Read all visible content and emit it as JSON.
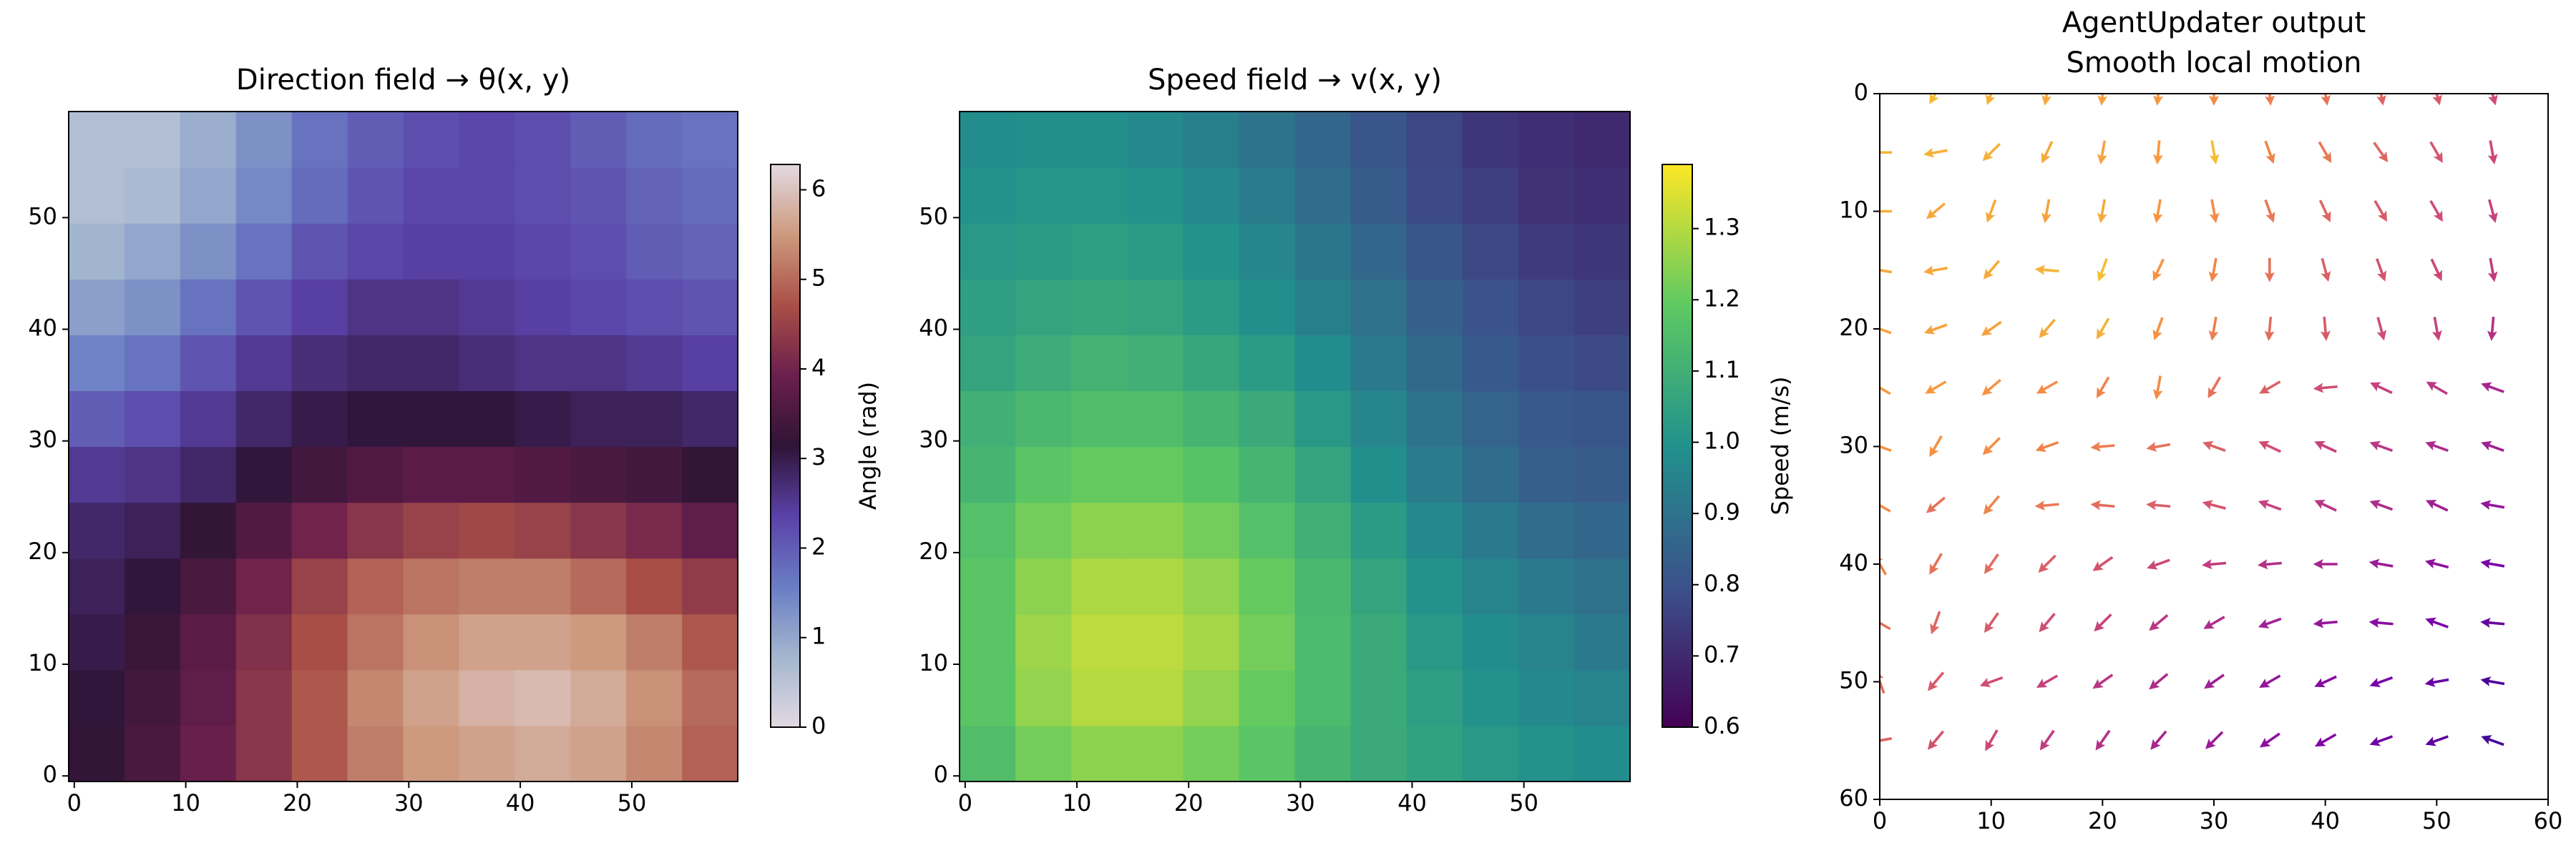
{
  "chart_data": [
    {
      "type": "heatmap",
      "title": "Direction field → θ(x, y)",
      "x_edges": [
        -0.5,
        4.5,
        9.5,
        14.5,
        19.5,
        24.5,
        29.5,
        34.5,
        39.5,
        44.5,
        49.5,
        54.5,
        59.5
      ],
      "y_edges": [
        -0.5,
        4.5,
        9.5,
        14.5,
        19.5,
        24.5,
        29.5,
        34.5,
        39.5,
        44.5,
        49.5,
        54.5,
        59.5
      ],
      "xlim": [
        -0.5,
        59.5
      ],
      "ylim": [
        -0.5,
        59.5
      ],
      "xticks": [
        0,
        10,
        20,
        30,
        40,
        50
      ],
      "yticks": [
        0,
        10,
        20,
        30,
        40,
        50
      ],
      "z": [
        [
          3.2,
          3.5,
          3.9,
          4.3,
          4.8,
          5.2,
          5.5,
          5.6,
          5.7,
          5.6,
          5.3,
          4.9
        ],
        [
          3.1,
          3.4,
          3.8,
          4.3,
          4.8,
          5.3,
          5.6,
          5.8,
          5.9,
          5.7,
          5.4,
          5.0
        ],
        [
          3.0,
          3.3,
          3.7,
          4.2,
          4.7,
          5.1,
          5.4,
          5.6,
          5.6,
          5.5,
          5.2,
          4.8
        ],
        [
          2.9,
          3.1,
          3.5,
          4.0,
          4.5,
          4.9,
          5.1,
          5.2,
          5.2,
          5.0,
          4.7,
          4.4
        ],
        [
          2.8,
          2.9,
          3.2,
          3.6,
          4.0,
          4.3,
          4.5,
          4.6,
          4.5,
          4.3,
          4.1,
          3.8
        ],
        [
          2.5,
          2.6,
          2.8,
          3.1,
          3.4,
          3.6,
          3.7,
          3.7,
          3.6,
          3.5,
          3.4,
          3.2
        ],
        [
          2.0,
          2.2,
          2.5,
          2.8,
          3.0,
          3.1,
          3.1,
          3.1,
          3.0,
          2.9,
          2.9,
          2.8
        ],
        [
          1.5,
          1.7,
          2.1,
          2.5,
          2.7,
          2.8,
          2.8,
          2.7,
          2.6,
          2.6,
          2.5,
          2.4
        ],
        [
          1.1,
          1.3,
          1.7,
          2.1,
          2.4,
          2.6,
          2.6,
          2.5,
          2.4,
          2.3,
          2.2,
          2.1
        ],
        [
          0.8,
          1.0,
          1.3,
          1.7,
          2.1,
          2.3,
          2.4,
          2.4,
          2.3,
          2.2,
          2.0,
          1.9
        ],
        [
          0.6,
          0.7,
          1.0,
          1.4,
          1.8,
          2.1,
          2.3,
          2.3,
          2.2,
          2.1,
          1.9,
          1.8
        ],
        [
          0.6,
          0.6,
          0.9,
          1.3,
          1.7,
          2.0,
          2.2,
          2.3,
          2.2,
          2.0,
          1.8,
          1.7
        ]
      ],
      "colormap": "twilight",
      "colorbar": {
        "label": "Angle (rad)",
        "lim": [
          0,
          6.283
        ],
        "ticks": [
          0,
          1,
          2,
          3,
          4,
          5,
          6
        ]
      }
    },
    {
      "type": "heatmap",
      "title": "Speed field → v(x, y)",
      "x_edges": [
        -0.5,
        4.5,
        9.5,
        14.5,
        19.5,
        24.5,
        29.5,
        34.5,
        39.5,
        44.5,
        49.5,
        54.5,
        59.5
      ],
      "y_edges": [
        -0.5,
        4.5,
        9.5,
        14.5,
        19.5,
        24.5,
        29.5,
        34.5,
        39.5,
        44.5,
        49.5,
        54.5,
        59.5
      ],
      "xlim": [
        -0.5,
        59.5
      ],
      "ylim": [
        -0.5,
        59.5
      ],
      "xticks": [
        0,
        10,
        20,
        30,
        40,
        50
      ],
      "yticks": [
        0,
        10,
        20,
        30,
        40,
        50
      ],
      "z": [
        [
          1.15,
          1.22,
          1.25,
          1.25,
          1.22,
          1.18,
          1.12,
          1.08,
          1.05,
          1.02,
          1.0,
          0.98
        ],
        [
          1.18,
          1.26,
          1.3,
          1.3,
          1.26,
          1.2,
          1.14,
          1.08,
          1.04,
          1.0,
          0.97,
          0.95
        ],
        [
          1.18,
          1.27,
          1.31,
          1.31,
          1.28,
          1.22,
          1.14,
          1.08,
          1.02,
          0.98,
          0.95,
          0.92
        ],
        [
          1.18,
          1.25,
          1.29,
          1.29,
          1.26,
          1.2,
          1.13,
          1.06,
          1.0,
          0.95,
          0.92,
          0.89
        ],
        [
          1.16,
          1.22,
          1.25,
          1.25,
          1.22,
          1.16,
          1.1,
          1.03,
          0.97,
          0.92,
          0.88,
          0.86
        ],
        [
          1.12,
          1.18,
          1.2,
          1.2,
          1.17,
          1.12,
          1.06,
          0.99,
          0.93,
          0.88,
          0.84,
          0.83
        ],
        [
          1.1,
          1.13,
          1.15,
          1.15,
          1.12,
          1.08,
          1.02,
          0.96,
          0.9,
          0.85,
          0.82,
          0.81
        ],
        [
          1.06,
          1.09,
          1.11,
          1.1,
          1.07,
          1.03,
          0.98,
          0.92,
          0.87,
          0.82,
          0.79,
          0.78
        ],
        [
          1.04,
          1.06,
          1.07,
          1.06,
          1.03,
          0.99,
          0.94,
          0.89,
          0.84,
          0.8,
          0.77,
          0.75
        ],
        [
          1.02,
          1.03,
          1.04,
          1.03,
          1.0,
          0.96,
          0.91,
          0.86,
          0.81,
          0.77,
          0.74,
          0.73
        ],
        [
          1.0,
          1.01,
          1.01,
          1.0,
          0.97,
          0.93,
          0.88,
          0.83,
          0.78,
          0.75,
          0.72,
          0.71
        ],
        [
          0.98,
          0.99,
          0.99,
          0.97,
          0.94,
          0.9,
          0.86,
          0.81,
          0.77,
          0.73,
          0.71,
          0.7
        ]
      ],
      "colormap": "viridis",
      "colorbar": {
        "label": "Speed (m/s)",
        "lim": [
          0.6,
          1.39
        ],
        "ticks": [
          0.6,
          0.7,
          0.8,
          0.9,
          {
            "value": 1,
            "label": "1.0"
          },
          1.1,
          1.2,
          1.3
        ]
      }
    },
    {
      "type": "quiver",
      "title": "AgentUpdater output",
      "subtitle": "Smooth local motion",
      "xlim": [
        0,
        60
      ],
      "ylim": [
        60,
        0
      ],
      "xticks": [
        0,
        10,
        20,
        30,
        40,
        50,
        60
      ],
      "yticks": [
        0,
        10,
        20,
        30,
        40,
        50,
        60
      ],
      "x": [
        0,
        5,
        10,
        15,
        20,
        25,
        30,
        35,
        40,
        45,
        50,
        55
      ],
      "y": [
        0,
        5,
        10,
        15,
        20,
        25,
        30,
        35,
        40,
        45,
        50,
        55
      ],
      "angle": [
        [
          150,
          120,
          110,
          100,
          95,
          95,
          90,
          85,
          80,
          80,
          75,
          75
        ],
        [
          180,
          170,
          135,
          115,
          100,
          95,
          80,
          70,
          60,
          55,
          60,
          80
        ],
        [
          180,
          140,
          110,
          100,
          100,
          100,
          80,
          70,
          65,
          60,
          60,
          75
        ],
        [
          190,
          170,
          130,
          185,
          110,
          115,
          100,
          90,
          75,
          70,
          65,
          80
        ],
        [
          200,
          160,
          145,
          130,
          120,
          110,
          100,
          95,
          85,
          75,
          80,
          95
        ],
        [
          210,
          150,
          140,
          150,
          120,
          100,
          120,
          150,
          175,
          205,
          210,
          200
        ],
        [
          200,
          120,
          135,
          160,
          175,
          170,
          200,
          205,
          205,
          200,
          200,
          200
        ],
        [
          210,
          140,
          130,
          175,
          185,
          185,
          195,
          200,
          205,
          200,
          205,
          190
        ],
        [
          240,
          120,
          125,
          135,
          145,
          160,
          175,
          175,
          180,
          190,
          195,
          190
        ],
        [
          210,
          110,
          125,
          130,
          135,
          140,
          150,
          160,
          175,
          185,
          200,
          185
        ],
        [
          250,
          130,
          160,
          150,
          145,
          140,
          145,
          150,
          155,
          160,
          170,
          190
        ],
        [
          170,
          130,
          120,
          125,
          125,
          130,
          135,
          145,
          150,
          160,
          160,
          200
        ]
      ],
      "level": [
        [
          0.85,
          0.84,
          0.82,
          0.8,
          0.78,
          0.75,
          0.72,
          0.68,
          0.64,
          0.6,
          0.56,
          0.52
        ],
        [
          0.83,
          0.82,
          0.82,
          0.8,
          0.78,
          0.76,
          0.85,
          0.7,
          0.66,
          0.6,
          0.55,
          0.5
        ],
        [
          0.82,
          0.8,
          0.8,
          0.78,
          0.8,
          0.75,
          0.72,
          0.66,
          0.6,
          0.56,
          0.52,
          0.48
        ],
        [
          0.8,
          0.8,
          0.8,
          0.82,
          0.85,
          0.74,
          0.7,
          0.64,
          0.58,
          0.54,
          0.5,
          0.46
        ],
        [
          0.78,
          0.78,
          0.78,
          0.8,
          0.82,
          0.74,
          0.68,
          0.62,
          0.56,
          0.52,
          0.48,
          0.42
        ],
        [
          0.76,
          0.76,
          0.74,
          0.72,
          0.7,
          0.72,
          0.64,
          0.58,
          0.52,
          0.48,
          0.44,
          0.38
        ],
        [
          0.74,
          0.74,
          0.72,
          0.7,
          0.68,
          0.64,
          0.58,
          0.52,
          0.48,
          0.44,
          0.4,
          0.36
        ],
        [
          0.72,
          0.64,
          0.7,
          0.66,
          0.62,
          0.58,
          0.54,
          0.48,
          0.44,
          0.4,
          0.36,
          0.32
        ],
        [
          0.7,
          0.64,
          0.62,
          0.58,
          0.54,
          0.5,
          0.46,
          0.42,
          0.38,
          0.34,
          0.3,
          0.24
        ],
        [
          0.64,
          0.6,
          0.56,
          0.52,
          0.48,
          0.44,
          0.4,
          0.36,
          0.32,
          0.28,
          0.24,
          0.2
        ],
        [
          0.62,
          0.56,
          0.52,
          0.48,
          0.44,
          0.4,
          0.36,
          0.32,
          0.28,
          0.24,
          0.2,
          0.14
        ],
        [
          0.6,
          0.54,
          0.5,
          0.46,
          0.42,
          0.38,
          0.34,
          0.3,
          0.26,
          0.22,
          0.18,
          0.12
        ]
      ],
      "colormap": "plasma"
    }
  ]
}
